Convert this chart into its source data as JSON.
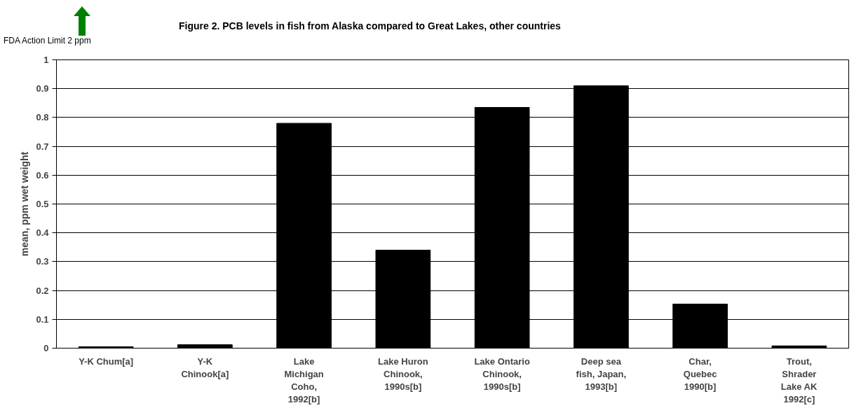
{
  "chart_data": {
    "type": "bar",
    "title": "Figure 2.  PCB levels in fish from Alaska compared to Great Lakes, other countries",
    "ylabel": "mean, ppm wet weight",
    "annotations": [
      "FDA Action Limit 2 ppm"
    ],
    "categories": [
      "Y-K Chum[a]",
      "Y-K\nChinook[a]",
      "Lake\nMichigan\nCoho,\n1992[b]",
      "Lake Huron\nChinook,\n1990s[b]",
      "Lake Ontario\nChinook,\n1990s[b]",
      "Deep sea\nfish, Japan,\n1993[b]",
      "Char,\nQuebec\n1990[b]",
      "Trout,\nShrader\nLake AK\n1992[c]"
    ],
    "values": [
      0.005,
      0.012,
      0.78,
      0.34,
      0.835,
      0.91,
      0.153,
      0.008
    ],
    "color": "#000000",
    "ylim": [
      0,
      1
    ],
    "yticks": [
      0,
      0.1,
      0.2,
      0.3,
      0.4,
      0.5,
      0.6,
      0.7,
      0.8,
      0.9,
      1
    ],
    "grid": "y"
  }
}
